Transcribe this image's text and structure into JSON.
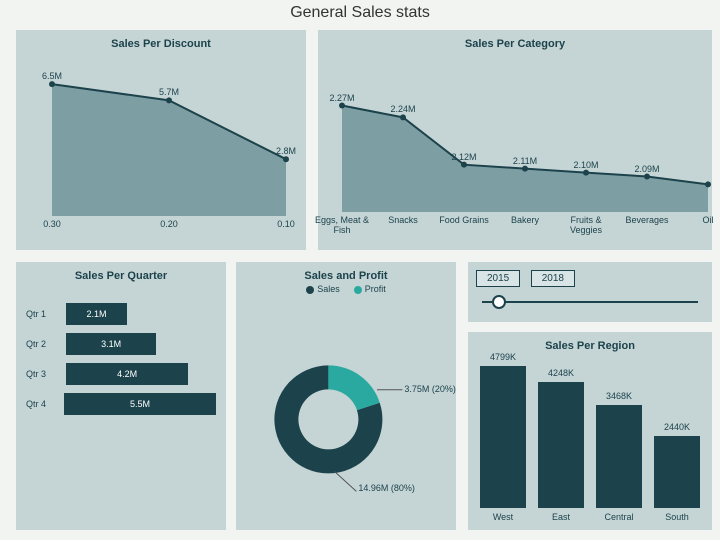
{
  "title": "General Sales stats",
  "colors": {
    "panel": "#c5d5d6",
    "dark": "#1c424b",
    "teal": "#2aa9a0",
    "areaFill": "#7d9ea3",
    "areaStroke": "#1c424b",
    "bg": "#f1f4f0"
  },
  "discount": {
    "title": "Sales Per Discount",
    "type": "area",
    "categories": [
      "0.30",
      "0.20",
      "0.10"
    ],
    "values": [
      6.5,
      5.7,
      2.8
    ],
    "labels": [
      "6.5M",
      "5.7M",
      "2.8M"
    ],
    "ymax": 7
  },
  "category": {
    "title": "Sales Per Category",
    "type": "area",
    "categories": [
      "Eggs, Meat & Fish",
      "Snacks",
      "Food Grains",
      "Bakery",
      "Fruits & Veggies",
      "Beverages",
      "Oil"
    ],
    "values": [
      2.27,
      2.24,
      2.12,
      2.11,
      2.1,
      2.09,
      2.07
    ],
    "labels": [
      "2.27M",
      "2.24M",
      "2.12M",
      "2.11M",
      "2.10M",
      "2.09M",
      ""
    ],
    "ymax": 2.35,
    "ymin": 2.0
  },
  "quarter": {
    "title": "Sales Per Quarter",
    "type": "bar-h",
    "categories": [
      "Qtr 1",
      "Qtr 2",
      "Qtr 3",
      "Qtr 4"
    ],
    "values": [
      2.1,
      3.1,
      4.2,
      5.5
    ],
    "labels": [
      "2.1M",
      "3.1M",
      "4.2M",
      "5.5M"
    ],
    "max": 5.5
  },
  "donut": {
    "title": "Sales and Profit",
    "type": "donut",
    "series": [
      "Sales",
      "Profit"
    ],
    "series_colors": [
      "#1c424b",
      "#2aa9a0"
    ],
    "values": [
      14.96,
      3.75
    ],
    "pct": [
      80,
      20
    ],
    "labels": [
      "14.96M (80%)",
      "3.75M (20%)"
    ]
  },
  "years": {
    "start": "2015",
    "end": "2018",
    "knob_pos": 0.05
  },
  "region": {
    "title": "Sales Per Region",
    "type": "bar-v",
    "categories": [
      "West",
      "East",
      "Central",
      "South"
    ],
    "values": [
      4799,
      4248,
      3468,
      2440
    ],
    "labels": [
      "4799K",
      "4248K",
      "3468K",
      "2440K"
    ],
    "max": 5000
  }
}
